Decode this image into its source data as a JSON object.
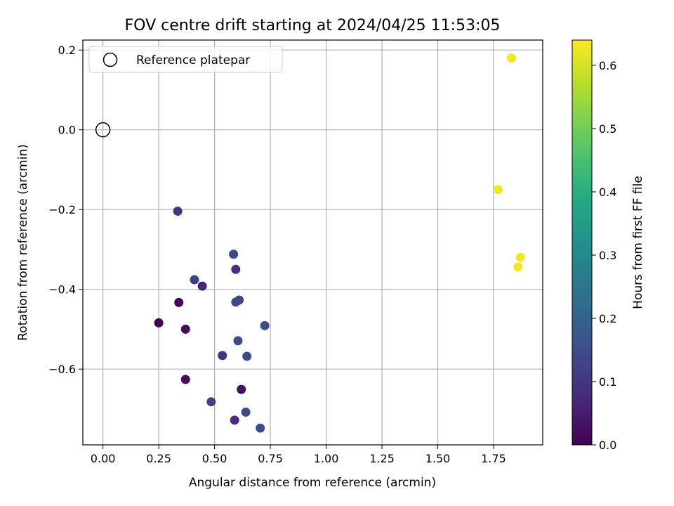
{
  "chart_data": {
    "type": "scatter",
    "title": "FOV centre drift starting at 2024/04/25 11:53:05",
    "xlabel": "Angular distance from reference (arcmin)",
    "ylabel": "Rotation from reference (arcmin)",
    "xlim": [
      -0.09,
      1.97
    ],
    "ylim": [
      -0.79,
      0.225
    ],
    "xticks": [
      0.0,
      0.25,
      0.5,
      0.75,
      1.0,
      1.25,
      1.5,
      1.75
    ],
    "xtick_labels": [
      "0.00",
      "0.25",
      "0.50",
      "0.75",
      "1.00",
      "1.25",
      "1.50",
      "1.75"
    ],
    "yticks": [
      0.2,
      0.0,
      -0.2,
      -0.4,
      -0.6
    ],
    "ytick_labels": [
      "0.2",
      "0.0",
      "−0.2",
      "−0.4",
      "−0.6"
    ],
    "grid": true,
    "legend": {
      "position": "top-left",
      "entries": [
        "Reference platepar"
      ]
    },
    "reference_point": {
      "x": 0.0,
      "y": 0.0,
      "label": "Reference platepar"
    },
    "colorbar": {
      "label": "Hours from first FF file",
      "range": [
        0.0,
        0.64
      ],
      "ticks": [
        0.0,
        0.1,
        0.2,
        0.3,
        0.4,
        0.5,
        0.6
      ],
      "tick_labels": [
        "0.0",
        "0.1",
        "0.2",
        "0.3",
        "0.4",
        "0.5",
        "0.6"
      ],
      "colormap": "viridis"
    },
    "points": [
      {
        "x": 0.34,
        "y": -0.433,
        "hours": 0.01
      },
      {
        "x": 0.25,
        "y": -0.484,
        "hours": 0.0
      },
      {
        "x": 0.37,
        "y": -0.5,
        "hours": 0.02
      },
      {
        "x": 0.37,
        "y": -0.626,
        "hours": 0.02
      },
      {
        "x": 0.62,
        "y": -0.651,
        "hours": 0.03
      },
      {
        "x": 0.335,
        "y": -0.204,
        "hours": 0.1
      },
      {
        "x": 0.59,
        "y": -0.728,
        "hours": 0.08
      },
      {
        "x": 0.445,
        "y": -0.392,
        "hours": 0.07
      },
      {
        "x": 0.535,
        "y": -0.566,
        "hours": 0.09
      },
      {
        "x": 0.41,
        "y": -0.376,
        "hours": 0.12
      },
      {
        "x": 0.595,
        "y": -0.35,
        "hours": 0.09
      },
      {
        "x": 0.585,
        "y": -0.312,
        "hours": 0.14
      },
      {
        "x": 0.595,
        "y": -0.432,
        "hours": 0.13
      },
      {
        "x": 0.61,
        "y": -0.427,
        "hours": 0.13
      },
      {
        "x": 0.605,
        "y": -0.529,
        "hours": 0.15
      },
      {
        "x": 0.645,
        "y": -0.568,
        "hours": 0.15
      },
      {
        "x": 0.725,
        "y": -0.491,
        "hours": 0.15
      },
      {
        "x": 0.485,
        "y": -0.682,
        "hours": 0.12
      },
      {
        "x": 0.64,
        "y": -0.708,
        "hours": 0.14
      },
      {
        "x": 0.705,
        "y": -0.748,
        "hours": 0.15
      },
      {
        "x": 1.83,
        "y": 0.18,
        "hours": 0.63
      },
      {
        "x": 1.77,
        "y": -0.15,
        "hours": 0.63
      },
      {
        "x": 1.87,
        "y": -0.32,
        "hours": 0.63
      },
      {
        "x": 1.86,
        "y": -0.344,
        "hours": 0.63
      }
    ]
  }
}
